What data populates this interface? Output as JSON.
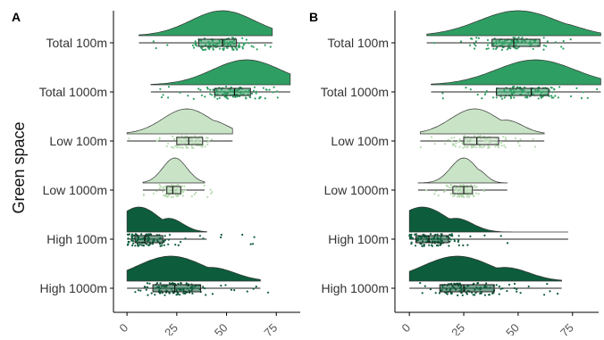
{
  "figure": {
    "ylabel": "Green space"
  },
  "chart_data": [
    {
      "panel": "A",
      "type": "raincloud",
      "categories": [
        "Total 100m",
        "Total 1000m",
        "Low 100m",
        "Low 1000m",
        "High 100m",
        "High 1000m"
      ],
      "xticks": [
        0,
        25,
        50,
        75
      ],
      "xlim": [
        -5,
        87
      ],
      "grid": false,
      "legend": "none",
      "groups": [
        {
          "category": "Total 100m",
          "min": 6,
          "q1": 36,
          "median": 48,
          "q3": 55,
          "max": 73,
          "points_from": 6,
          "points_to": 73,
          "peak": 48,
          "spread": 16,
          "color": "#2f9e63"
        },
        {
          "category": "Total 1000m",
          "min": 12,
          "q1": 44,
          "median": 54,
          "q3": 62,
          "max": 82,
          "points_from": 12,
          "points_to": 78,
          "peak": 60,
          "spread": 17,
          "color": "#2f9e63"
        },
        {
          "category": "Low 100m",
          "min": 0,
          "q1": 25,
          "median": 31,
          "q3": 38,
          "max": 53,
          "points_from": 0,
          "points_to": 53,
          "peak": 30,
          "spread": 12,
          "color": "#c9e3c6"
        },
        {
          "category": "Low 1000m",
          "min": 8,
          "q1": 20,
          "median": 23,
          "q3": 27,
          "max": 39,
          "points_from": 8,
          "points_to": 43,
          "peak": 24,
          "spread": 6,
          "color": "#c9e3c6"
        },
        {
          "category": "High 100m",
          "min": 0,
          "q1": 4,
          "median": 9,
          "q3": 18,
          "max": 40,
          "points_from": 0,
          "points_to": 64,
          "peak": 6,
          "spread": 10,
          "color": "#0d5c3b"
        },
        {
          "category": "High 1000m",
          "min": 0,
          "q1": 13,
          "median": 24,
          "q3": 37,
          "max": 67,
          "points_from": 0,
          "points_to": 74,
          "peak": 22,
          "spread": 17,
          "color": "#0d5c3b"
        }
      ]
    },
    {
      "panel": "B",
      "type": "raincloud",
      "categories": [
        "Total 100m",
        "Total 1000m",
        "Low 100m",
        "Low 1000m",
        "High 100m",
        "High 1000m"
      ],
      "xticks": [
        0,
        25,
        50,
        75
      ],
      "xlim": [
        -5,
        87
      ],
      "grid": false,
      "legend": "none",
      "groups": [
        {
          "category": "Total 100m",
          "min": 8,
          "q1": 38,
          "median": 48,
          "q3": 60,
          "max": 88,
          "points_from": 8,
          "points_to": 88,
          "peak": 50,
          "spread": 18,
          "color": "#2f9e63"
        },
        {
          "category": "Total 1000m",
          "min": 10,
          "q1": 40,
          "median": 56,
          "q3": 64,
          "max": 88,
          "points_from": 10,
          "points_to": 88,
          "peak": 58,
          "spread": 18,
          "color": "#2f9e63"
        },
        {
          "category": "Low 100m",
          "min": 5,
          "q1": 25,
          "median": 31,
          "q3": 41,
          "max": 62,
          "points_from": 5,
          "points_to": 62,
          "peak": 30,
          "spread": 11,
          "color": "#c9e3c6"
        },
        {
          "category": "Low 1000m",
          "min": 4,
          "q1": 20,
          "median": 25,
          "q3": 29,
          "max": 45,
          "points_from": 4,
          "points_to": 45,
          "peak": 25,
          "spread": 6,
          "color": "#c9e3c6"
        },
        {
          "category": "High 100m",
          "min": 0,
          "q1": 3,
          "median": 9,
          "q3": 18,
          "max": 73,
          "points_from": 0,
          "points_to": 73,
          "peak": 6,
          "spread": 11,
          "color": "#0d5c3b"
        },
        {
          "category": "High 1000m",
          "min": 0,
          "q1": 14,
          "median": 25,
          "q3": 39,
          "max": 70,
          "points_from": 0,
          "points_to": 70,
          "peak": 22,
          "spread": 16,
          "color": "#0d5c3b"
        }
      ]
    }
  ]
}
